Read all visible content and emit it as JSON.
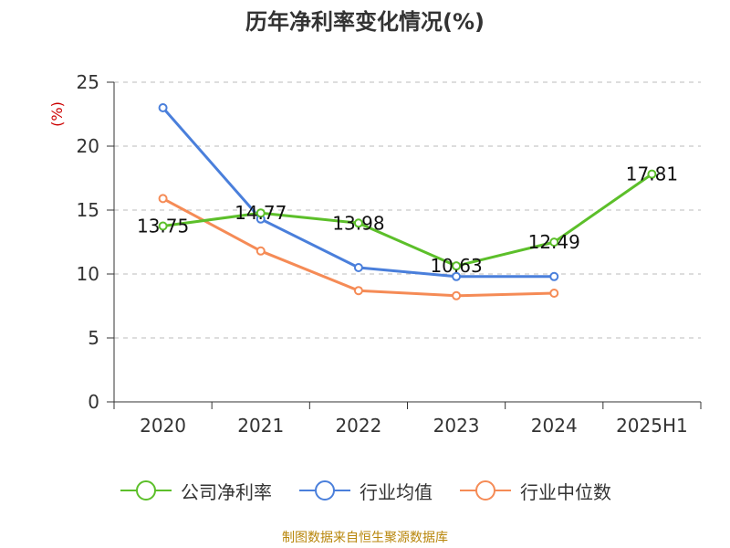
{
  "chart_data": {
    "type": "line",
    "title": "历年净利率变化情况(%)",
    "ylabel": "(%)",
    "categories": [
      "2020",
      "2021",
      "2022",
      "2023",
      "2024",
      "2025H1"
    ],
    "ylim": [
      0,
      25
    ],
    "yticks": [
      0,
      5,
      10,
      15,
      20,
      25
    ],
    "grid": true,
    "legend_position": "bottom",
    "series": [
      {
        "name": "公司净利率",
        "color": "#5cbf2a",
        "values": [
          13.75,
          14.77,
          13.98,
          10.63,
          12.49,
          17.81
        ],
        "labels": [
          "13.75",
          "14.77",
          "13.98",
          "10.63",
          "12.49",
          "17.81"
        ]
      },
      {
        "name": "行业均值",
        "color": "#4a7fdb",
        "values": [
          23.0,
          14.3,
          10.5,
          9.8,
          9.8,
          null
        ]
      },
      {
        "name": "行业中位数",
        "color": "#f58b56",
        "values": [
          15.9,
          11.8,
          8.7,
          8.3,
          8.5,
          null
        ]
      }
    ],
    "source": "制图数据来自恒生聚源数据库"
  }
}
